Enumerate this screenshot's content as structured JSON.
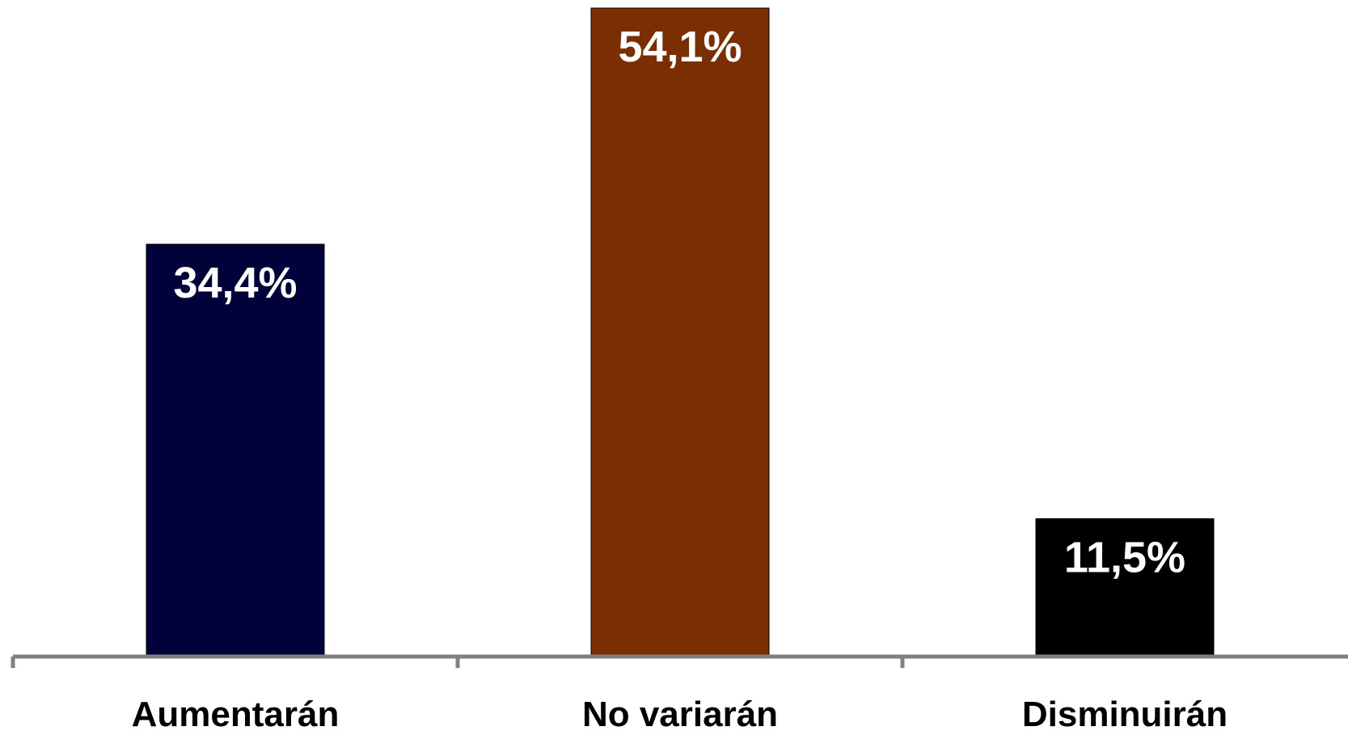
{
  "chart_data": {
    "type": "bar",
    "categories": [
      "Aumentarán",
      "No variarán",
      "Disminuirán"
    ],
    "values": [
      34.4,
      54.1,
      11.5
    ],
    "value_labels": [
      "34,4%",
      "54,1%",
      "11,5%"
    ],
    "colors": [
      "#02023a",
      "#7a2e02",
      "#000000"
    ],
    "axis_color": "#808080",
    "ylim": [
      0,
      54.1
    ],
    "grid": false,
    "legend": "none",
    "title": "",
    "xlabel": "",
    "ylabel": ""
  }
}
